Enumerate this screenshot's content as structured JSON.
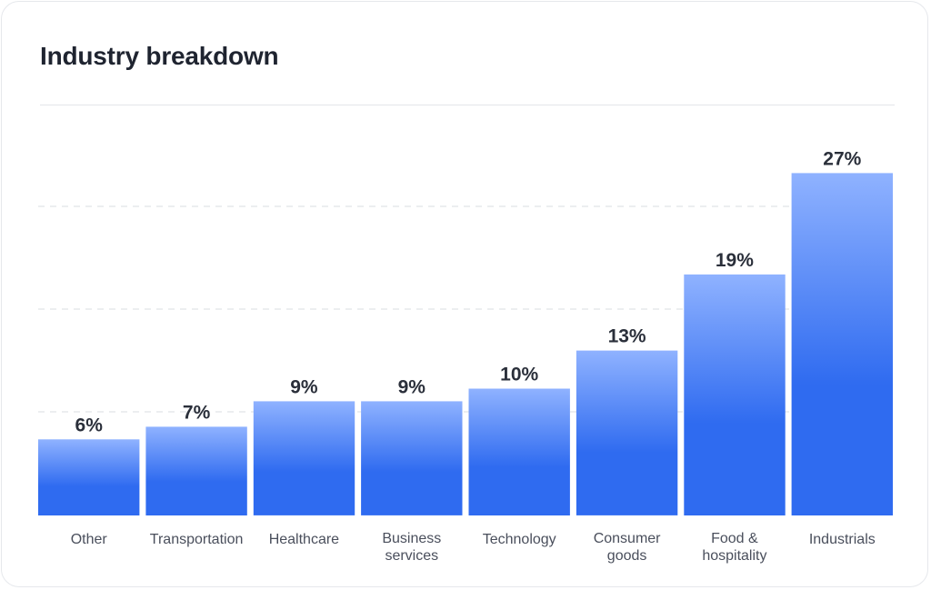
{
  "chart_data": {
    "type": "bar",
    "title": "Industry breakdown",
    "categories": [
      [
        "Other"
      ],
      [
        "Transportation"
      ],
      [
        "Healthcare"
      ],
      [
        "Business",
        "services"
      ],
      [
        "Technology"
      ],
      [
        "Consumer",
        "goods"
      ],
      [
        "Food &",
        "hospitality"
      ],
      [
        "Industrials"
      ]
    ],
    "values": [
      6,
      7,
      9,
      9,
      10,
      13,
      19,
      27
    ],
    "value_labels": [
      "6%",
      "7%",
      "9%",
      "9%",
      "10%",
      "13%",
      "19%",
      "27%"
    ],
    "unit": "%",
    "ylim": [
      0,
      30
    ],
    "grid": "horizontal-dashed",
    "legend": "none",
    "colors": {
      "bar_top": "#8fb2ff",
      "bar_bottom": "#2f6bf0",
      "grid": "#d9dce2"
    }
  }
}
